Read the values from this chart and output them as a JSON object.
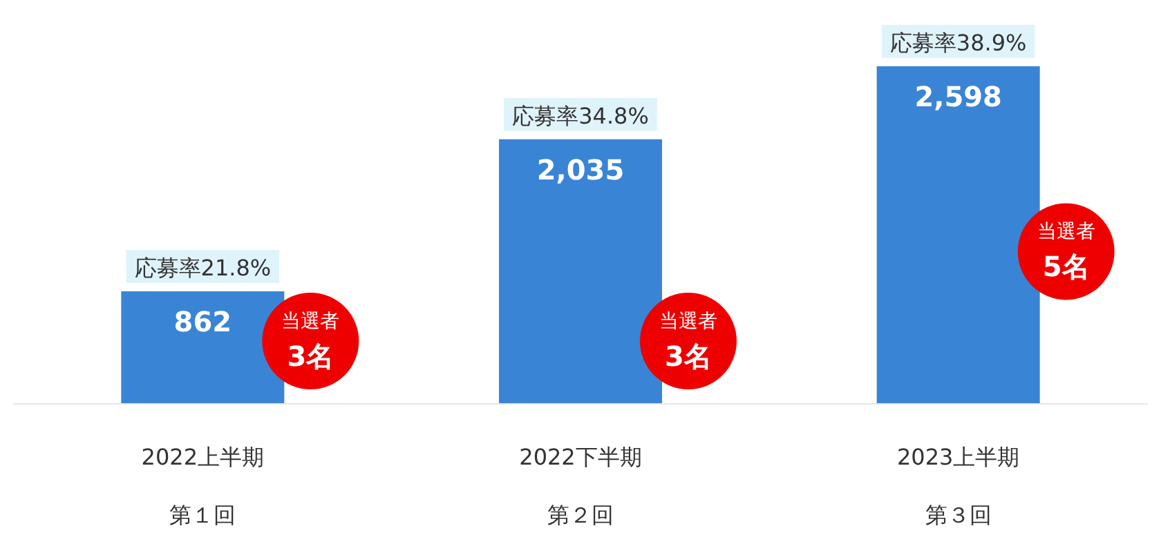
{
  "chart_data": {
    "type": "bar",
    "categories": [
      "2022上半期第１回",
      "2022下半期第２回",
      "2023上半期第３回"
    ],
    "values": [
      862,
      2035,
      2598
    ],
    "color": "#3a84d6",
    "value_labels": [
      "862",
      "2,035",
      "2,598"
    ],
    "annotations": [
      "応募率21.8%",
      "応募率34.8%",
      "応募率38.9%",
      "当選者\n3名",
      "当選者\n3名",
      "当選者\n5名"
    ]
  }
}
